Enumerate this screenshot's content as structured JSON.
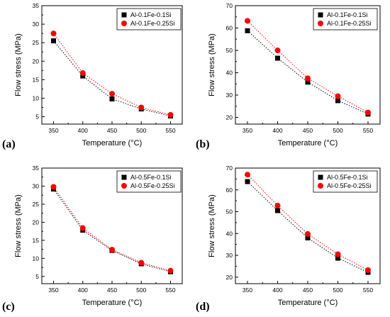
{
  "chart_data": [
    {
      "panel_label": "(a)",
      "type": "scatter",
      "xlabel": "Temperature (°C)",
      "ylabel": "Flow stress (MPa)",
      "x": [
        350,
        400,
        450,
        500,
        550
      ],
      "xticks": [
        350,
        400,
        450,
        500,
        550
      ],
      "yticks": [
        5,
        10,
        15,
        20,
        25,
        30,
        35
      ],
      "xlim": [
        330,
        570
      ],
      "ylim": [
        3,
        35
      ],
      "legend_position": "top-right",
      "grid": false,
      "series": [
        {
          "name": "Al-0.1Fe-0.1Si",
          "marker": "square",
          "color": "#000000",
          "values": [
            25.5,
            16.0,
            9.8,
            7.1,
            5.2
          ]
        },
        {
          "name": "Al-0.1Fe-0.25Si",
          "marker": "circle",
          "color": "#ff0000",
          "values": [
            27.5,
            16.8,
            11.2,
            7.5,
            5.5
          ]
        }
      ]
    },
    {
      "panel_label": "(b)",
      "type": "scatter",
      "xlabel": "Temperature (°C)",
      "ylabel": "Flow stress (MPa)",
      "x": [
        350,
        400,
        450,
        500,
        550
      ],
      "xticks": [
        350,
        400,
        450,
        500,
        550
      ],
      "yticks": [
        20,
        30,
        40,
        50,
        60,
        70
      ],
      "xlim": [
        330,
        570
      ],
      "ylim": [
        17,
        70
      ],
      "legend_position": "top-right",
      "grid": false,
      "series": [
        {
          "name": "Al-0.1Fe-0.1Si",
          "marker": "square",
          "color": "#000000",
          "values": [
            58.8,
            46.5,
            35.8,
            27.5,
            21.5
          ]
        },
        {
          "name": "Al-0.1Fe-0.25Si",
          "marker": "circle",
          "color": "#ff0000",
          "values": [
            63.2,
            50.0,
            37.5,
            29.5,
            22.2
          ]
        }
      ]
    },
    {
      "panel_label": "(c)",
      "type": "scatter",
      "xlabel": "Temperature (°C)",
      "ylabel": "Flow stress (MPa)",
      "x": [
        350,
        400,
        450,
        500,
        550
      ],
      "xticks": [
        350,
        400,
        450,
        500,
        550
      ],
      "yticks": [
        5,
        10,
        15,
        20,
        25,
        30,
        35
      ],
      "xlim": [
        330,
        570
      ],
      "ylim": [
        3,
        35
      ],
      "legend_position": "top-right",
      "grid": false,
      "series": [
        {
          "name": "Al-0.5Fe-0.1Si",
          "marker": "square",
          "color": "#000000",
          "values": [
            29.2,
            17.8,
            12.2,
            8.5,
            6.3
          ]
        },
        {
          "name": "Al-0.5Fe-0.25Si",
          "marker": "circle",
          "color": "#ff0000",
          "values": [
            29.8,
            18.4,
            12.4,
            8.8,
            6.6
          ]
        }
      ]
    },
    {
      "panel_label": "(d)",
      "type": "scatter",
      "xlabel": "Temperature (°C)",
      "ylabel": "Flow stress (MPa)",
      "x": [
        350,
        400,
        450,
        500,
        550
      ],
      "xticks": [
        350,
        400,
        450,
        500,
        550
      ],
      "yticks": [
        20,
        30,
        40,
        50,
        60,
        70
      ],
      "xlim": [
        330,
        570
      ],
      "ylim": [
        17,
        70
      ],
      "legend_position": "top-right",
      "grid": false,
      "series": [
        {
          "name": "Al-0.5Fe-0.1Si",
          "marker": "square",
          "color": "#000000",
          "values": [
            63.8,
            50.5,
            38.0,
            28.7,
            22.2
          ]
        },
        {
          "name": "Al-0.5Fe-0.25Si",
          "marker": "circle",
          "color": "#ff0000",
          "values": [
            67.0,
            52.8,
            39.8,
            30.5,
            23.2
          ]
        }
      ]
    }
  ]
}
